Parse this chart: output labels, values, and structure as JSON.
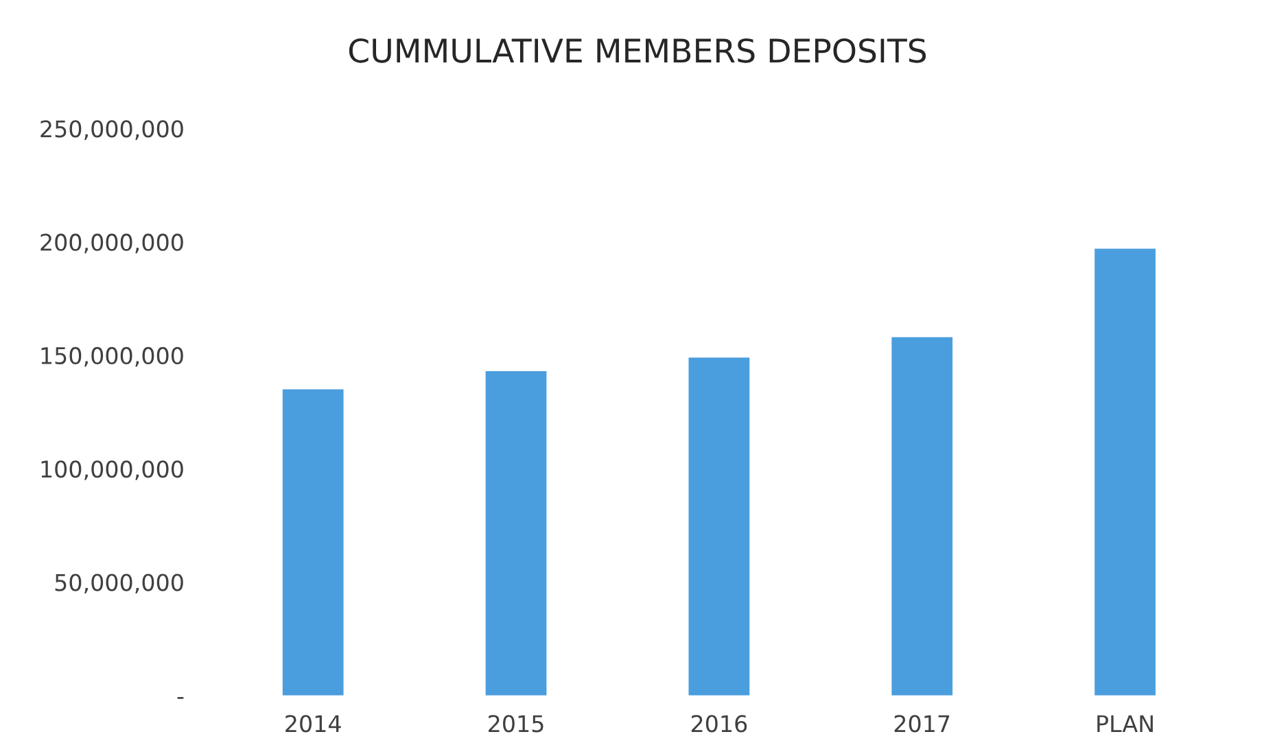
{
  "chart_data": {
    "type": "bar",
    "title": "CUMMULATIVE MEMBERS DEPOSITS",
    "categories": [
      "2014",
      "2015",
      "2016",
      "2017",
      "PLAN"
    ],
    "values": [
      135000000,
      143000000,
      149000000,
      158000000,
      197000000
    ],
    "color": "#4a9ede",
    "ylim": [
      0,
      250000000
    ],
    "yticks": [
      {
        "value": 0,
        "label": "-"
      },
      {
        "value": 50000000,
        "label": "50,000,000"
      },
      {
        "value": 100000000,
        "label": "100,000,000"
      },
      {
        "value": 150000000,
        "label": "150,000,000"
      },
      {
        "value": 200000000,
        "label": "200,000,000"
      },
      {
        "value": 250000000,
        "label": "250,000,000"
      }
    ],
    "grid": false
  }
}
